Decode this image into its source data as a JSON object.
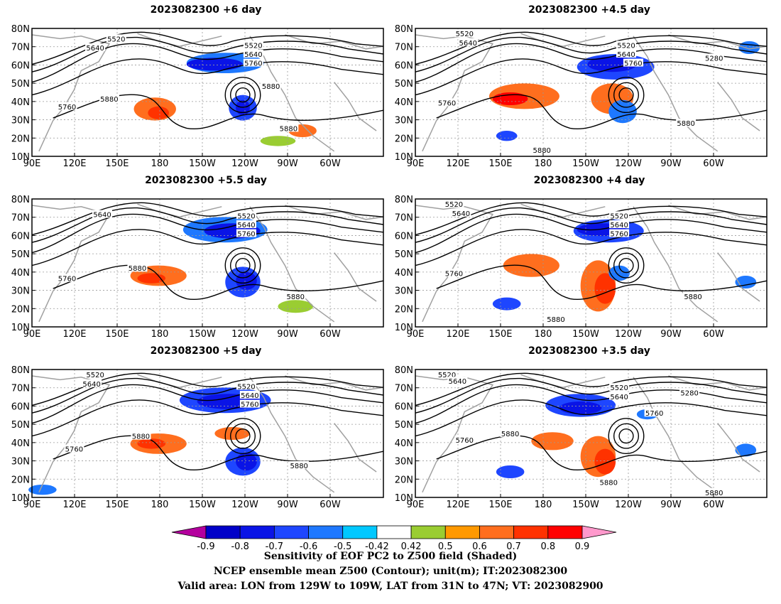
{
  "panels": [
    {
      "title": "2023082300 +6 day",
      "contour_labels": [
        "5520",
        "5640",
        "5520",
        "5640",
        "5760",
        "5880",
        "5760",
        "5880",
        "5880"
      ]
    },
    {
      "title": "2023082300 +4.5 day",
      "contour_labels": [
        "5520",
        "5640",
        "5520",
        "5640",
        "5760",
        "5280",
        "5760",
        "5880",
        "5880"
      ]
    },
    {
      "title": "2023082300 +5.5 day",
      "contour_labels": [
        "5640",
        "5520",
        "5640",
        "5760",
        "5880",
        "5760",
        "5880"
      ]
    },
    {
      "title": "2023082300 +4 day",
      "contour_labels": [
        "5520",
        "5640",
        "5520",
        "5640",
        "5760",
        "5760",
        "5880",
        "5880"
      ]
    },
    {
      "title": "2023082300 +5 day",
      "contour_labels": [
        "5520",
        "5640",
        "5520",
        "5640",
        "5760",
        "5880",
        "5760",
        "5880"
      ]
    },
    {
      "title": "2023082300 +3.5 day",
      "contour_labels": [
        "5520",
        "5640",
        "5520",
        "5640",
        "5280",
        "5760",
        "5880",
        "5760",
        "5880",
        "5880"
      ]
    }
  ],
  "axes": {
    "y_ticks": [
      "80N",
      "70N",
      "60N",
      "50N",
      "40N",
      "30N",
      "20N",
      "10N"
    ],
    "x_ticks": [
      "90E",
      "120E",
      "150E",
      "180",
      "150W",
      "120W",
      "90W",
      "60W"
    ]
  },
  "colorbar": {
    "labels": [
      "-0.9",
      "-0.8",
      "-0.7",
      "-0.6",
      "-0.5",
      "-0.42",
      "0.42",
      "0.5",
      "0.6",
      "0.7",
      "0.8",
      "0.9"
    ],
    "colors": [
      "#b4009e",
      "#0000c8",
      "#0a14e6",
      "#1e46ff",
      "#1e78ff",
      "#00c8ff",
      "#ffffff",
      "#9acd32",
      "#ff9900",
      "#ff6e1e",
      "#ff3200",
      "#ff0000",
      "#ff99cc"
    ]
  },
  "captions": [
    "Sensitivity of EOF PC2 to Z500 field (Shaded)",
    "NCEP ensemble mean Z500 (Contour); unit(m); IT:2023082300",
    "Valid area: LON from 129W to 109W, LAT from 31N to 47N; VT: 2023082900"
  ]
}
